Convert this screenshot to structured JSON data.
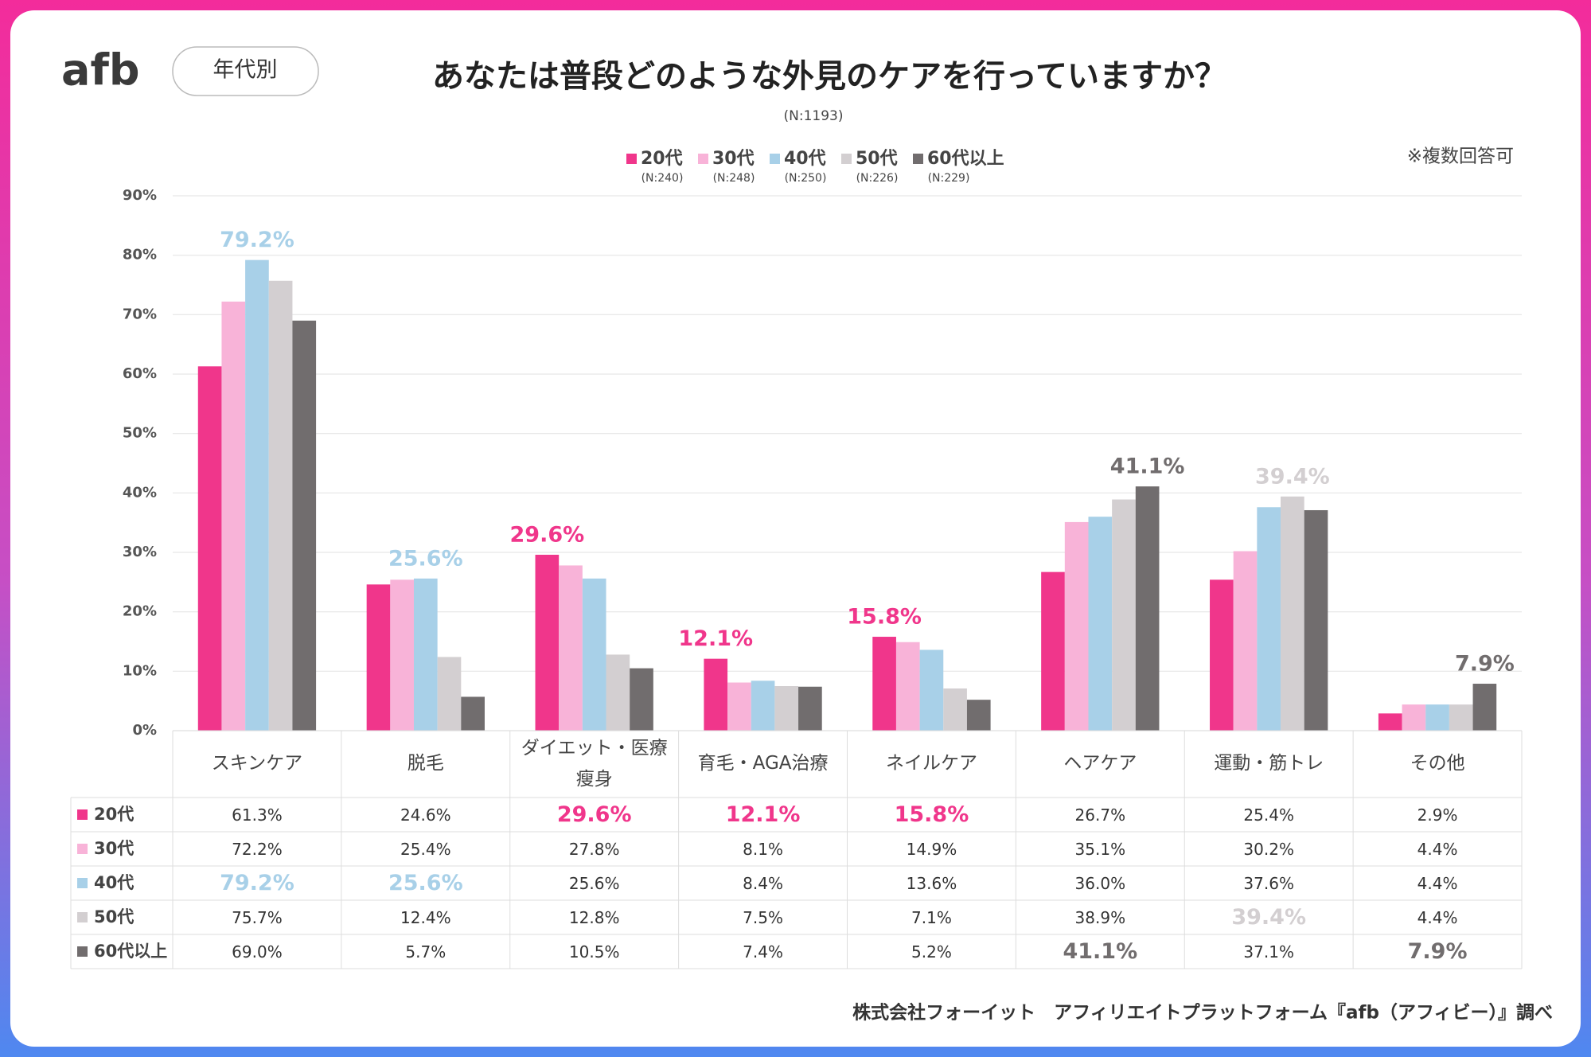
{
  "header": {
    "logo": "afb",
    "tag": "年代別",
    "note": "※複数回答可",
    "source": "株式会社フォーイット　アフィリエイトプラットフォーム『afb（アフィビー）』調べ"
  },
  "chart_data": {
    "type": "bar",
    "title": "あなたは普段どのような外見のケアを行っていますか？",
    "subtitle": "(N:1193)",
    "categories": [
      "スキンケア",
      "脱毛",
      "ダイエット・医療\n瘦身",
      "育毛・AGA治療",
      "ネイルケア",
      "ヘアケア",
      "運動・筋トレ",
      "その他"
    ],
    "series": [
      {
        "name": "20代",
        "sample": "(N:240)",
        "color": "#f0368b",
        "values": [
          61.3,
          24.6,
          29.6,
          12.1,
          15.8,
          26.7,
          25.4,
          2.9
        ],
        "value_labels": [
          "61.3%",
          "24.6%",
          "29.6%",
          "12.1%",
          "15.8%",
          "26.7%",
          "25.4%",
          "2.9%"
        ]
      },
      {
        "name": "30代",
        "sample": "(N:248)",
        "color": "#f8b3d8",
        "values": [
          72.2,
          25.4,
          27.8,
          8.1,
          14.9,
          35.1,
          30.2,
          4.4
        ],
        "value_labels": [
          "72.2%",
          "25.4%",
          "27.8%",
          "8.1%",
          "14.9%",
          "35.1%",
          "30.2%",
          "4.4%"
        ]
      },
      {
        "name": "40代",
        "sample": "(N:250)",
        "color": "#a8d0e8",
        "values": [
          79.2,
          25.6,
          25.6,
          8.4,
          13.6,
          36.0,
          37.6,
          4.4
        ],
        "value_labels": [
          "79.2%",
          "25.6%",
          "25.6%",
          "8.4%",
          "13.6%",
          "36.0%",
          "37.6%",
          "4.4%"
        ]
      },
      {
        "name": "50代",
        "sample": "(N:226)",
        "color": "#d3cfd1",
        "values": [
          75.7,
          12.4,
          12.8,
          7.5,
          7.1,
          38.9,
          39.4,
          4.4
        ],
        "value_labels": [
          "75.7%",
          "12.4%",
          "12.8%",
          "7.5%",
          "7.1%",
          "38.9%",
          "39.4%",
          "4.4%"
        ]
      },
      {
        "name": "60代以上",
        "sample": "(N:229)",
        "color": "#716d6e",
        "values": [
          69.0,
          5.7,
          10.5,
          7.4,
          5.2,
          41.1,
          37.1,
          7.9
        ],
        "value_labels": [
          "69.0%",
          "5.7%",
          "10.5%",
          "7.4%",
          "5.2%",
          "41.1%",
          "37.1%",
          "7.9%"
        ]
      }
    ],
    "ylim": [
      0,
      90
    ],
    "yticks": [
      {
        "value": 0,
        "label": "0%"
      },
      {
        "value": 10,
        "label": "10%"
      },
      {
        "value": 20,
        "label": "20%"
      },
      {
        "value": 30,
        "label": "30%"
      },
      {
        "value": 40,
        "label": "40%"
      },
      {
        "value": 50,
        "label": "50%"
      },
      {
        "value": 60,
        "label": "60%"
      },
      {
        "value": 70,
        "label": "70%"
      },
      {
        "value": 80,
        "label": "80%"
      },
      {
        "value": 90,
        "label": "90%"
      }
    ],
    "grid": true
  }
}
